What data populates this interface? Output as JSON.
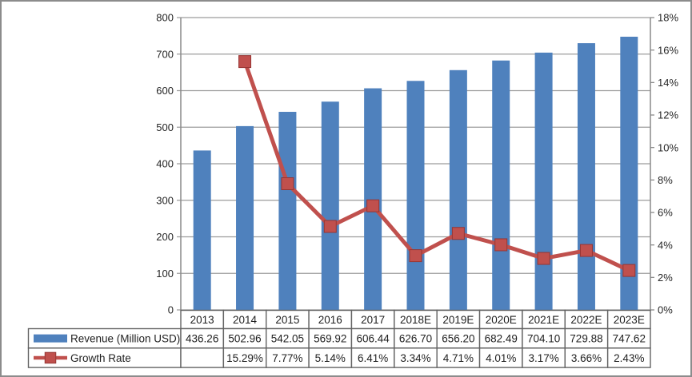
{
  "frame": {
    "background": "#FFFFFF",
    "border_color": "#8C8C8C"
  },
  "chart_data": {
    "type": "combo-bar-line",
    "title": "",
    "categories": [
      "2013",
      "2014",
      "2015",
      "2016",
      "2017",
      "2018E",
      "2019E",
      "2020E",
      "2021E",
      "2022E",
      "2023E"
    ],
    "series": [
      {
        "name": "Revenue (Million USD)",
        "type": "bar",
        "axis": "left",
        "color": "#4F81BD",
        "values": [
          436.26,
          502.96,
          542.05,
          569.92,
          606.44,
          626.7,
          656.2,
          682.49,
          704.1,
          729.88,
          747.62
        ]
      },
      {
        "name": "Growth Rate",
        "type": "line",
        "axis": "right",
        "color": "#C0504D",
        "marker": "square",
        "marker_border": "#963634",
        "values": [
          null,
          15.29,
          7.77,
          5.14,
          6.41,
          3.34,
          4.71,
          4.01,
          3.17,
          3.66,
          2.43
        ]
      }
    ],
    "left_axis": {
      "min": 0,
      "max": 800,
      "step": 100,
      "tick_labels": [
        "0",
        "100",
        "200",
        "300",
        "400",
        "500",
        "600",
        "700",
        "800"
      ]
    },
    "right_axis": {
      "min": 0,
      "max": 18,
      "step": 2,
      "tick_labels": [
        "0%",
        "2%",
        "4%",
        "6%",
        "8%",
        "10%",
        "12%",
        "14%",
        "16%",
        "18%"
      ]
    },
    "gridlines": true,
    "legend_position": "bottom-table-left",
    "data_table": {
      "rows": [
        {
          "label": "Revenue (Million USD)",
          "cells": [
            "436.26",
            "502.96",
            "542.05",
            "569.92",
            "606.44",
            "626.70",
            "656.20",
            "682.49",
            "704.10",
            "729.88",
            "747.62"
          ]
        },
        {
          "label": "Growth Rate",
          "cells": [
            "",
            "15.29%",
            "7.77%",
            "5.14%",
            "6.41%",
            "3.34%",
            "4.71%",
            "4.01%",
            "3.17%",
            "3.66%",
            "2.43%"
          ]
        }
      ]
    },
    "colors": {
      "grid": "#9C9C9C",
      "axis": "#8A8A8A",
      "table_border": "#636363",
      "text": "#262626"
    }
  }
}
